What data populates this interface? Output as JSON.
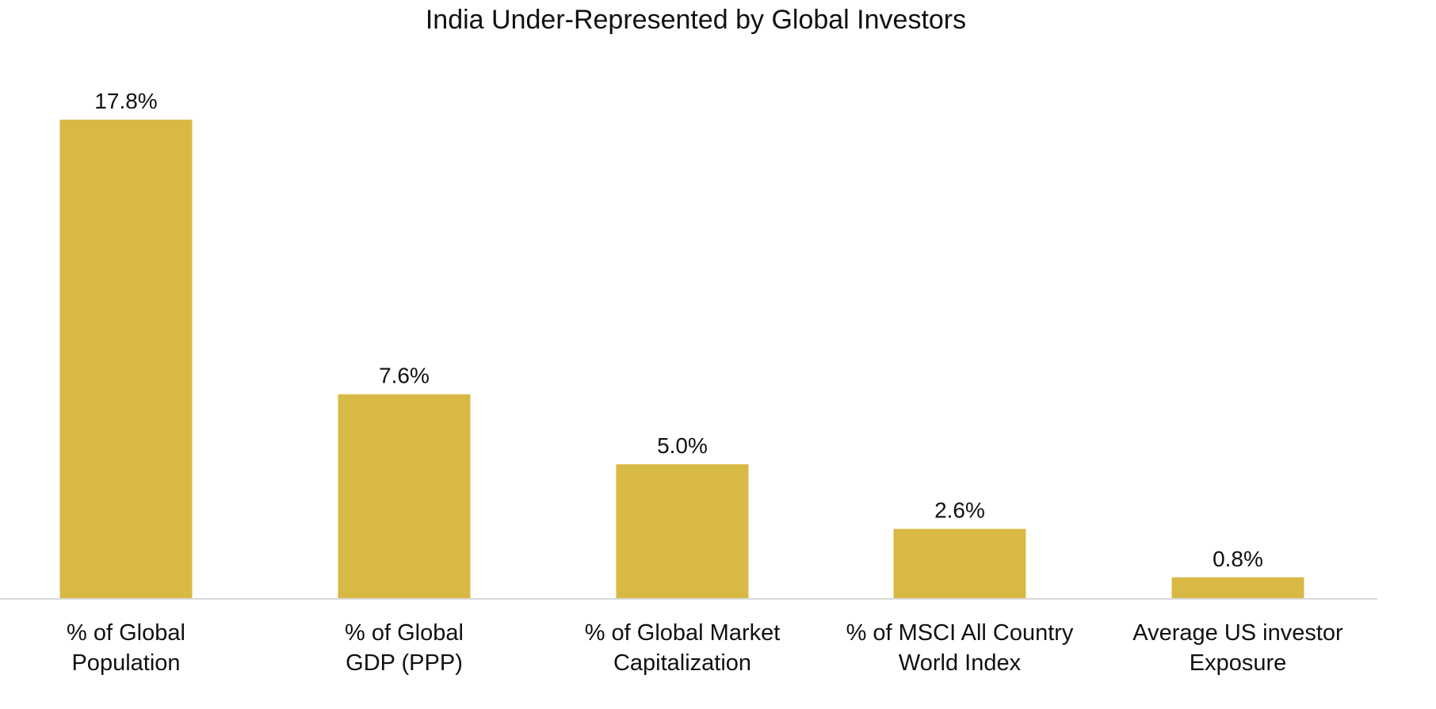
{
  "chart_data": {
    "type": "bar",
    "title": "India Under-Represented by Global Investors",
    "categories": [
      [
        "% of Global",
        "Population"
      ],
      [
        "% of Global",
        "GDP (PPP)"
      ],
      [
        "% of Global Market",
        "Capitalization"
      ],
      [
        "% of MSCI All Country",
        "World Index"
      ],
      [
        "Average US investor",
        "Exposure"
      ]
    ],
    "values": [
      17.8,
      7.6,
      5.0,
      2.6,
      0.8
    ],
    "data_labels": [
      "17.8%",
      "7.6%",
      "5.0%",
      "2.6%",
      "0.8%"
    ],
    "xlabel": "",
    "ylabel": "",
    "ylim": [
      0,
      17.8
    ],
    "grid": false,
    "legend": "none",
    "bar_color": "#d9b946",
    "axis_color": "#d9d9d9"
  }
}
